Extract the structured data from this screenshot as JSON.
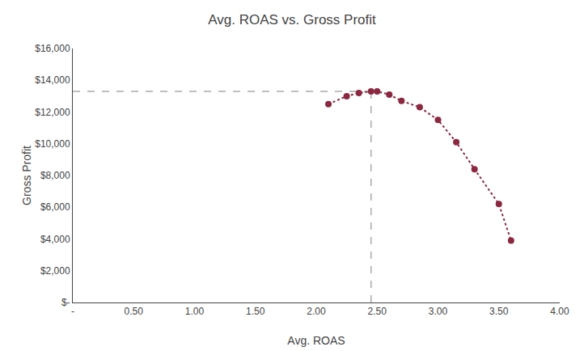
{
  "chart_data": {
    "type": "scatter",
    "title": "Avg. ROAS vs. Gross Profit",
    "xlabel": "Avg. ROAS",
    "ylabel": "Gross Profit",
    "series": [
      {
        "type": "line",
        "line_style": "dashed",
        "color": "#aaaaaa",
        "x": [
          0.0,
          2.45
        ],
        "values": [
          13300,
          13300
        ]
      },
      {
        "type": "line",
        "line_style": "dashed",
        "color": "#aaaaaa",
        "x": [
          2.45,
          2.45
        ],
        "values": [
          0,
          13300
        ]
      },
      {
        "type": "line",
        "line_style": "dotted",
        "marker": "circle",
        "color": "#8B2840",
        "x": [
          2.1,
          2.25,
          2.35,
          2.45,
          2.5,
          2.6,
          2.7,
          2.85,
          3.0,
          3.15,
          3.3,
          3.5,
          3.6
        ],
        "values": [
          12500,
          13000,
          13200,
          13300,
          13300,
          13100,
          12700,
          12300,
          11500,
          10100,
          8400,
          6200,
          3900
        ]
      }
    ],
    "xlim": [
      0,
      4.0
    ],
    "ylim": [
      0,
      16000
    ],
    "xticks": [
      {
        "value": 0,
        "label": "-"
      },
      {
        "value": 0.5,
        "label": "0.50"
      },
      {
        "value": 1.0,
        "label": "1.00"
      },
      {
        "value": 1.5,
        "label": "1.50"
      },
      {
        "value": 2.0,
        "label": "2.00"
      },
      {
        "value": 2.5,
        "label": "2.50"
      },
      {
        "value": 3.0,
        "label": "3.00"
      },
      {
        "value": 3.5,
        "label": "3.50"
      },
      {
        "value": 4.0,
        "label": "4.00"
      }
    ],
    "yticks": [
      {
        "value": 0,
        "label": "$-"
      },
      {
        "value": 2000,
        "label": "$2,000"
      },
      {
        "value": 4000,
        "label": "$4,000"
      },
      {
        "value": 6000,
        "label": "$6,000"
      },
      {
        "value": 8000,
        "label": "$8,000"
      },
      {
        "value": 10000,
        "label": "$10,000"
      },
      {
        "value": 12000,
        "label": "$12,000"
      },
      {
        "value": 14000,
        "label": "$14,000"
      },
      {
        "value": 16000,
        "label": "$16,000"
      }
    ],
    "grid": false
  }
}
